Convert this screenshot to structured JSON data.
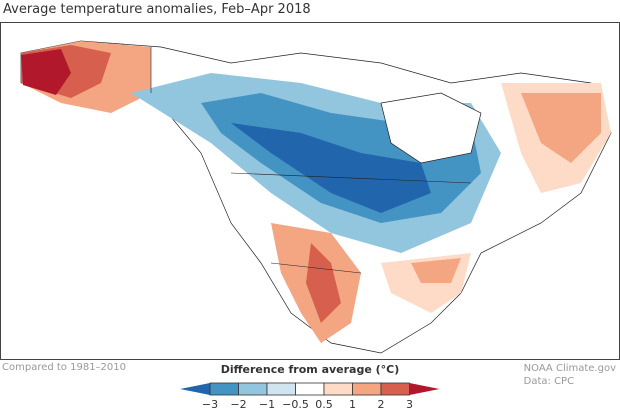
{
  "title": "Average temperature anomalies, Feb–Apr 2018",
  "footnote": "Compared to 1981–2010",
  "credit": {
    "line1": "NOAA Climate.gov",
    "line2": "Data: CPC"
  },
  "legend": {
    "title": "Difference from average (°C)",
    "ticks": [
      "−3",
      "−2",
      "−1",
      "−0.5",
      "0.5",
      "1",
      "2",
      "3"
    ],
    "colors": [
      "#2166ac",
      "#4393c3",
      "#92c5de",
      "#d1e5f0",
      "#ffffff",
      "#fddbc7",
      "#f4a582",
      "#d6604d",
      "#b2182b"
    ]
  },
  "map": {
    "region": "North America",
    "warm_regions": [
      "Alaska",
      "Southwest US",
      "Mexico",
      "Southeast US",
      "Eastern Canada"
    ],
    "cold_regions": [
      "Central Canada",
      "Northern Plains",
      "Great Lakes"
    ]
  }
}
